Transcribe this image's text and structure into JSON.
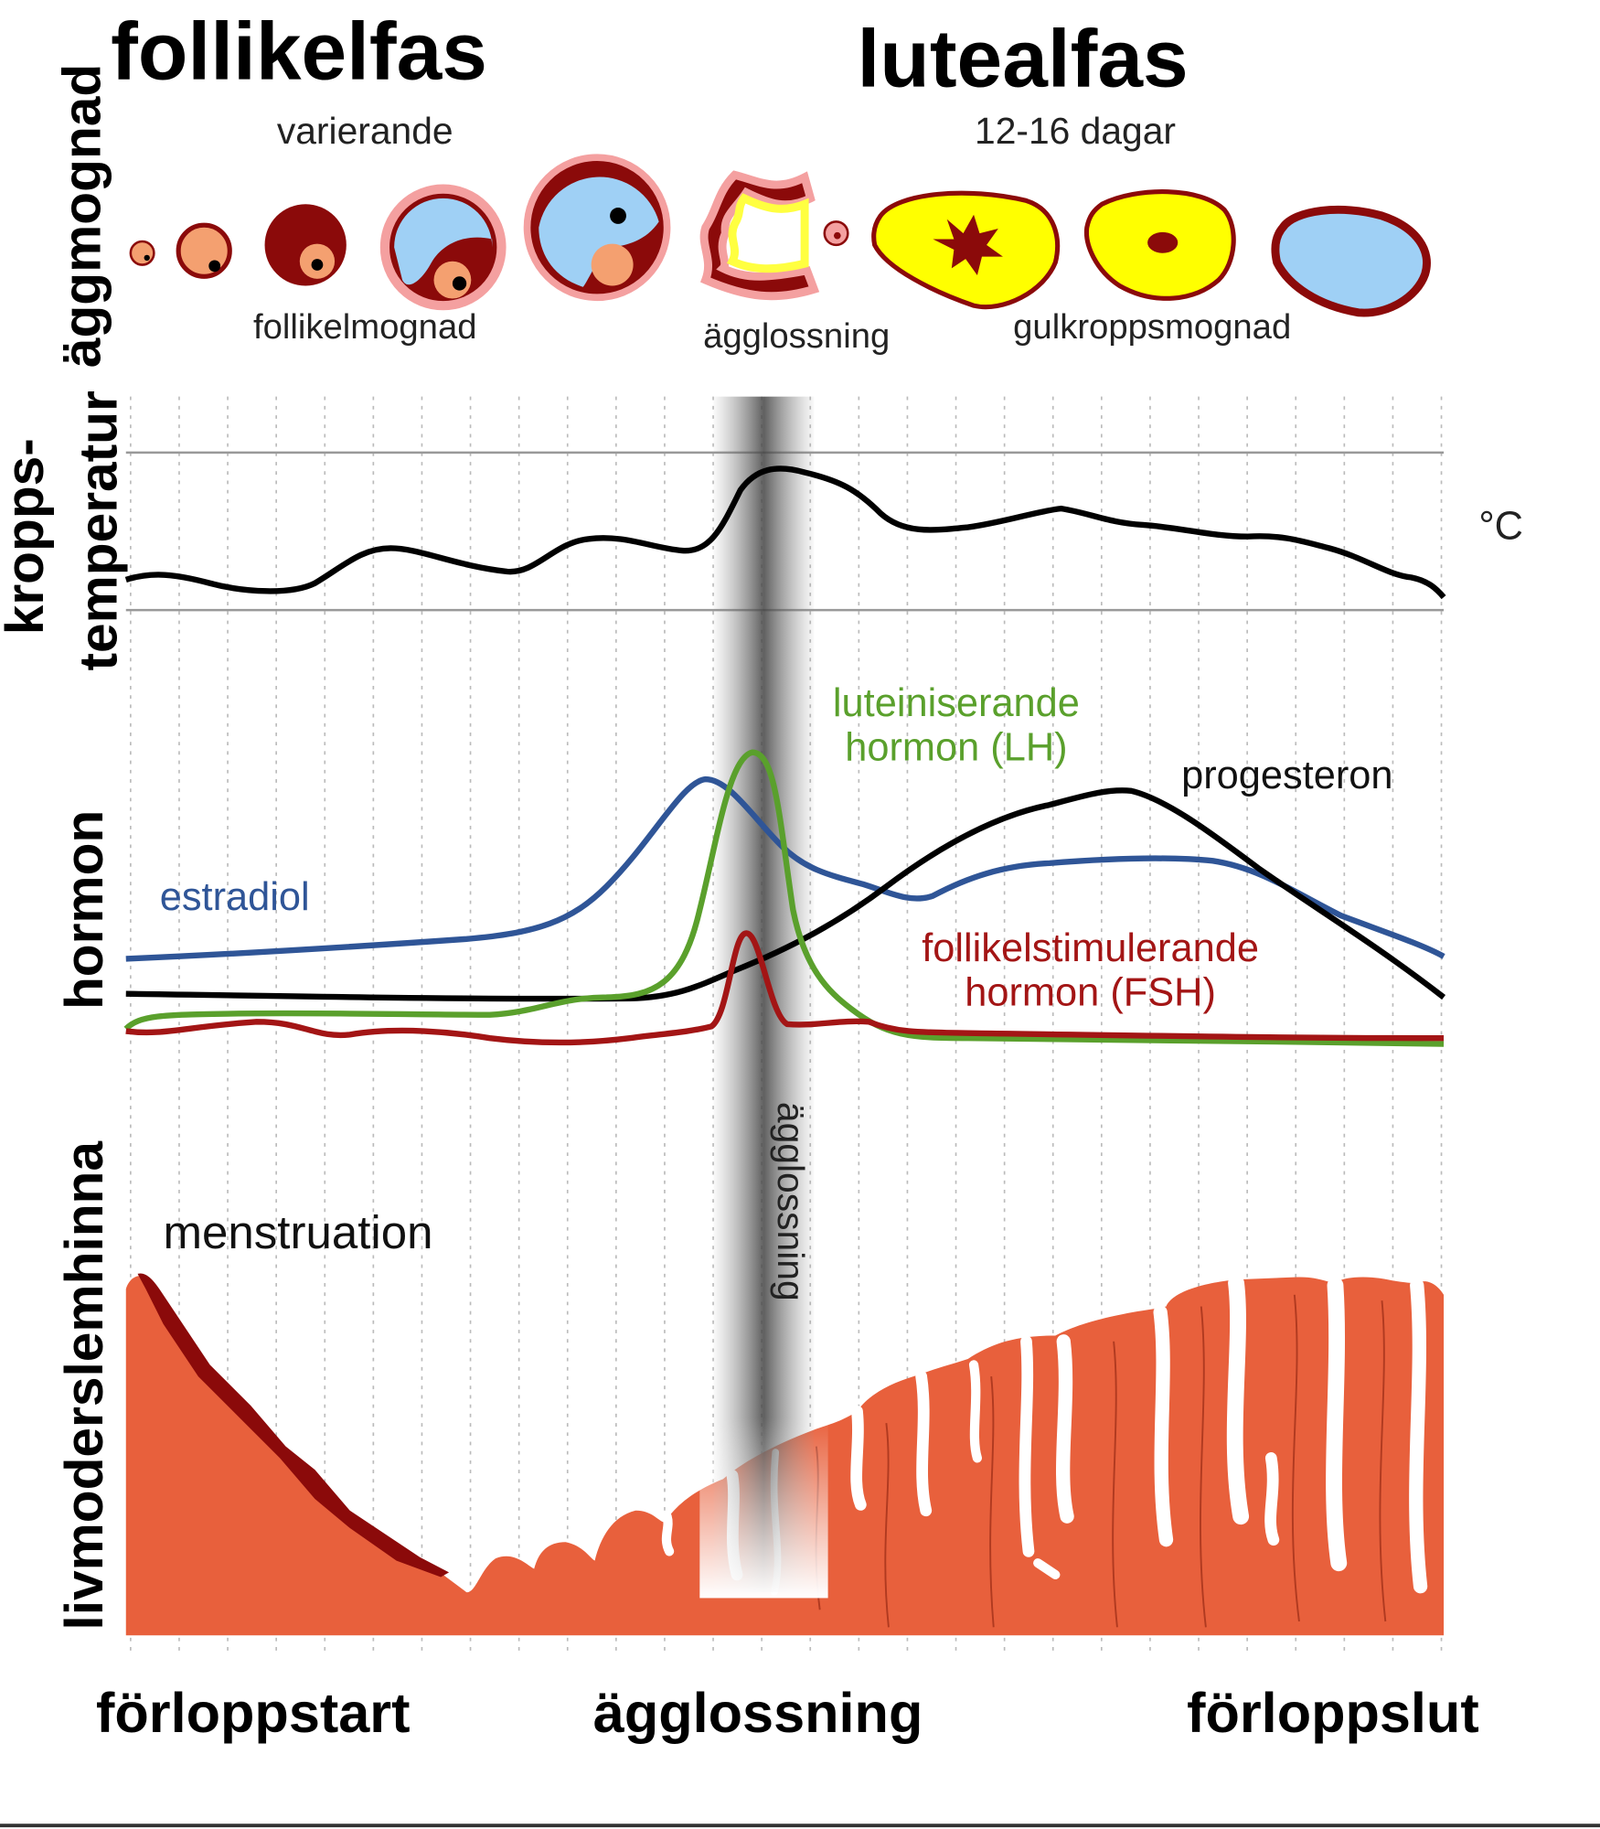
{
  "phases": {
    "follicular": "follikelfas",
    "luteal": "lutealfas",
    "follicular_duration": "varierande",
    "luteal_duration": "12-16 dagar"
  },
  "egg_row": {
    "label_maturation": "follikelmognad",
    "label_ovulation": "ägglossning",
    "label_corpus_luteum": "gulkroppsmognad"
  },
  "side_labels": {
    "egg": "äggmognad",
    "temp_1": "kropps-",
    "temp_2": "temperatur",
    "hormone": "hormon",
    "endometrium": "livmoderslemhinna"
  },
  "temperature": {
    "unit": "°C"
  },
  "hormones": {
    "lh_1": "luteiniserande",
    "lh_2": "hormon (LH)",
    "progesterone": "progesteron",
    "estradiol": "estradiol",
    "fsh_1": "follikelstimulerande",
    "fsh_2": "hormon (FSH)",
    "colors": {
      "lh": "#5aa02c",
      "estradiol": "#2f5597",
      "progesterone": "#000000",
      "fsh": "#a31515"
    }
  },
  "ovulation_band": "ägglossning",
  "menstruation": "menstruation",
  "endometrium_color": "#e8603c",
  "timeline": {
    "start": "förloppstart",
    "ovulation": "ägglossning",
    "end": "förloppslut"
  }
}
